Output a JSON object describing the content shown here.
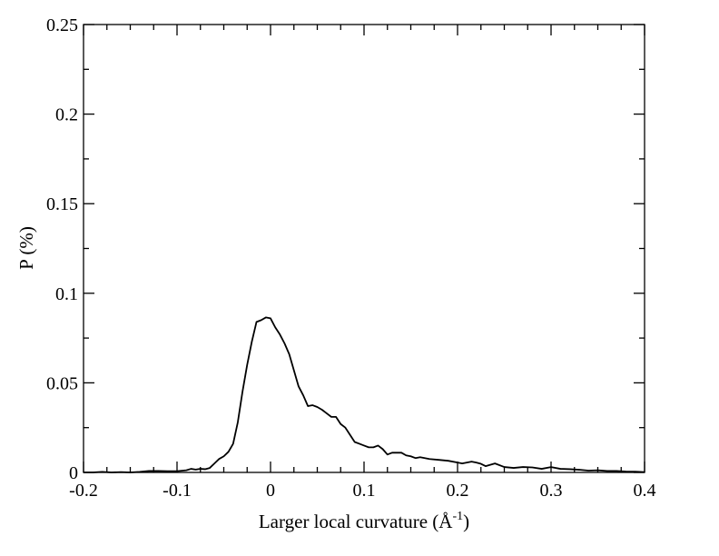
{
  "chart_data": {
    "type": "line",
    "xlabel": "Larger local curvature (Å",
    "xlabel_sup": "-1",
    "xlabel_close": ")",
    "ylabel": "P (%)",
    "xlim": [
      -0.2,
      0.4
    ],
    "ylim": [
      0,
      0.25
    ],
    "x_ticks": [
      -0.2,
      -0.1,
      0,
      0.1,
      0.2,
      0.3,
      0.4
    ],
    "x_tick_labels": [
      "-0.2",
      "-0.1",
      "0",
      "0.1",
      "0.2",
      "0.3",
      "0.4"
    ],
    "y_ticks": [
      0,
      0.05,
      0.1,
      0.15,
      0.2,
      0.25
    ],
    "y_tick_labels": [
      "0",
      "0.05",
      "0.1",
      "0.15",
      "0.2",
      "0.25"
    ],
    "grid": false,
    "legend": "none",
    "line_color": "#000000",
    "series": [
      {
        "x": [
          -0.2,
          -0.19,
          -0.18,
          -0.17,
          -0.16,
          -0.15,
          -0.14,
          -0.13,
          -0.12,
          -0.11,
          -0.1,
          -0.09,
          -0.085,
          -0.08,
          -0.075,
          -0.07,
          -0.065,
          -0.06,
          -0.055,
          -0.05,
          -0.045,
          -0.04,
          -0.035,
          -0.03,
          -0.025,
          -0.02,
          -0.015,
          -0.01,
          -0.005,
          0.0,
          0.005,
          0.01,
          0.015,
          0.02,
          0.025,
          0.03,
          0.035,
          0.04,
          0.045,
          0.05,
          0.055,
          0.06,
          0.065,
          0.07,
          0.075,
          0.08,
          0.085,
          0.09,
          0.095,
          0.1,
          0.105,
          0.11,
          0.115,
          0.12,
          0.125,
          0.13,
          0.14,
          0.145,
          0.15,
          0.155,
          0.16,
          0.17,
          0.18,
          0.19,
          0.2,
          0.205,
          0.21,
          0.215,
          0.22,
          0.225,
          0.23,
          0.24,
          0.25,
          0.26,
          0.27,
          0.28,
          0.29,
          0.3,
          0.31,
          0.32,
          0.33,
          0.34,
          0.35,
          0.36,
          0.37,
          0.38,
          0.39,
          0.4
        ],
        "y": [
          0.0,
          0.0,
          0.0003,
          0.0,
          0.0002,
          0.0,
          0.0003,
          0.0008,
          0.0008,
          0.0007,
          0.0007,
          0.0012,
          0.002,
          0.0016,
          0.002,
          0.0018,
          0.0025,
          0.005,
          0.0075,
          0.009,
          0.0115,
          0.016,
          0.028,
          0.045,
          0.06,
          0.073,
          0.084,
          0.085,
          0.0865,
          0.086,
          0.081,
          0.077,
          0.072,
          0.066,
          0.057,
          0.048,
          0.043,
          0.037,
          0.0375,
          0.0365,
          0.035,
          0.033,
          0.031,
          0.031,
          0.027,
          0.025,
          0.021,
          0.017,
          0.016,
          0.015,
          0.014,
          0.014,
          0.015,
          0.013,
          0.01,
          0.011,
          0.011,
          0.0095,
          0.009,
          0.008,
          0.0085,
          0.0075,
          0.007,
          0.0065,
          0.0055,
          0.005,
          0.0055,
          0.006,
          0.0055,
          0.0048,
          0.0035,
          0.005,
          0.003,
          0.0025,
          0.003,
          0.0028,
          0.002,
          0.003,
          0.002,
          0.0018,
          0.0015,
          0.001,
          0.0012,
          0.0008,
          0.0008,
          0.0005,
          0.0004,
          0.0002
        ]
      }
    ]
  }
}
